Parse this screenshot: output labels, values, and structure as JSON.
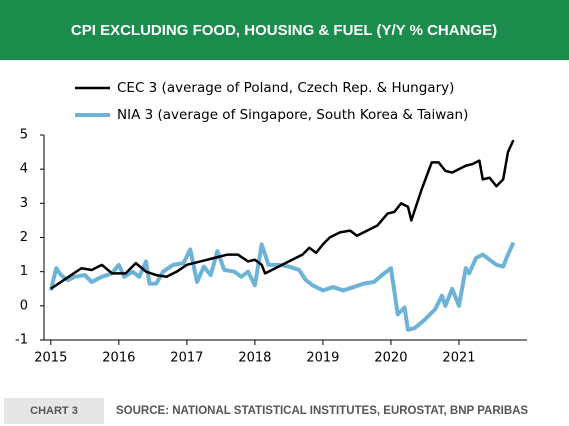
{
  "chart_data": {
    "type": "line",
    "title": "CPI EXCLUDING FOOD, HOUSING & FUEL (Y/Y % CHANGE)",
    "chart_label": "CHART 3",
    "source": "SOURCE: NATIONAL STATISTICAL INSTITUTES, EUROSTAT, BNP PARIBAS",
    "xlim": [
      2014.9,
      2022.0
    ],
    "xticks": [
      2015,
      2016,
      2017,
      2018,
      2019,
      2020,
      2021
    ],
    "ylim": [
      -1,
      5
    ],
    "yticks": [
      -1,
      0,
      1,
      2,
      3,
      4,
      5
    ],
    "grid": false,
    "legend": "top",
    "series": [
      {
        "name": "CEC 3 (average of Poland, Czech Rep. & Hungary)",
        "color": "#000000",
        "x": [
          2015.0,
          2015.15,
          2015.3,
          2015.45,
          2015.6,
          2015.75,
          2015.9,
          2016.1,
          2016.25,
          2016.4,
          2016.55,
          2016.7,
          2016.85,
          2017.0,
          2017.2,
          2017.4,
          2017.6,
          2017.75,
          2017.9,
          2018.0,
          2018.1,
          2018.15,
          2018.3,
          2018.5,
          2018.7,
          2018.8,
          2018.9,
          2019.0,
          2019.1,
          2019.25,
          2019.4,
          2019.5,
          2019.65,
          2019.8,
          2019.95,
          2020.05,
          2020.15,
          2020.25,
          2020.3,
          2020.45,
          2020.6,
          2020.7,
          2020.8,
          2020.9,
          2021.0,
          2021.1,
          2021.2,
          2021.3,
          2021.35,
          2021.45,
          2021.55,
          2021.65,
          2021.72,
          2021.8
        ],
        "values": [
          0.5,
          0.7,
          0.9,
          1.1,
          1.05,
          1.2,
          0.95,
          0.95,
          1.25,
          1.0,
          0.9,
          0.85,
          1.0,
          1.2,
          1.3,
          1.4,
          1.5,
          1.5,
          1.3,
          1.35,
          1.2,
          0.95,
          1.1,
          1.3,
          1.5,
          1.7,
          1.55,
          1.8,
          2.0,
          2.15,
          2.2,
          2.05,
          2.2,
          2.35,
          2.7,
          2.75,
          3.0,
          2.9,
          2.5,
          3.4,
          4.2,
          4.2,
          3.95,
          3.9,
          4.0,
          4.1,
          4.15,
          4.25,
          3.7,
          3.75,
          3.5,
          3.7,
          4.5,
          4.85
        ]
      },
      {
        "name": "NIA 3 (average of Singapore, South Korea & Taiwan)",
        "color": "#6db3d8",
        "x": [
          2015.0,
          2015.08,
          2015.15,
          2015.25,
          2015.35,
          2015.5,
          2015.6,
          2015.75,
          2015.9,
          2016.0,
          2016.08,
          2016.2,
          2016.3,
          2016.4,
          2016.45,
          2016.55,
          2016.65,
          2016.8,
          2016.95,
          2017.05,
          2017.15,
          2017.25,
          2017.35,
          2017.45,
          2017.55,
          2017.7,
          2017.8,
          2017.9,
          2018.0,
          2018.1,
          2018.2,
          2018.35,
          2018.5,
          2018.65,
          2018.75,
          2018.85,
          2019.0,
          2019.15,
          2019.3,
          2019.45,
          2019.6,
          2019.75,
          2019.9,
          2020.0,
          2020.1,
          2020.2,
          2020.25,
          2020.35,
          2020.5,
          2020.65,
          2020.75,
          2020.8,
          2020.9,
          2021.0,
          2021.1,
          2021.15,
          2021.25,
          2021.35,
          2021.45,
          2021.55,
          2021.65,
          2021.72,
          2021.8
        ],
        "values": [
          0.45,
          1.1,
          0.9,
          0.75,
          0.85,
          0.9,
          0.7,
          0.85,
          0.95,
          1.2,
          0.85,
          1.0,
          0.85,
          1.3,
          0.65,
          0.65,
          1.0,
          1.2,
          1.25,
          1.65,
          0.7,
          1.15,
          0.9,
          1.6,
          1.05,
          1.0,
          0.85,
          1.0,
          0.6,
          1.8,
          1.2,
          1.2,
          1.15,
          1.05,
          0.75,
          0.6,
          0.45,
          0.55,
          0.45,
          0.55,
          0.65,
          0.7,
          0.95,
          1.1,
          -0.25,
          -0.05,
          -0.7,
          -0.65,
          -0.4,
          -0.1,
          0.3,
          0.0,
          0.5,
          0.0,
          1.1,
          0.95,
          1.4,
          1.5,
          1.35,
          1.2,
          1.15,
          1.5,
          1.85
        ]
      }
    ]
  }
}
